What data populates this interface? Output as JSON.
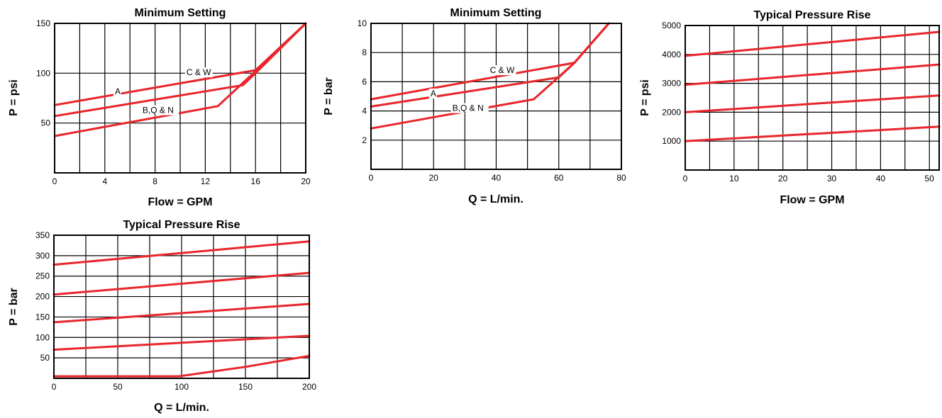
{
  "colors": {
    "line": "#e8262b",
    "grid": "#000000",
    "background": "#ffffff"
  },
  "chart_data": [
    {
      "type": "line",
      "title": "Minimum Setting",
      "xlabel": "Flow = GPM",
      "ylabel": "P = psi",
      "xlim": [
        0,
        20
      ],
      "ylim": [
        0,
        150
      ],
      "xticks": [
        0,
        4,
        8,
        12,
        16,
        20
      ],
      "yticks": [
        50,
        100,
        150
      ],
      "grid": true,
      "series": [
        {
          "name": "C & W",
          "points": [
            [
              0,
              68
            ],
            [
              16,
              103
            ],
            [
              20,
              150
            ]
          ]
        },
        {
          "name": "A",
          "points": [
            [
              0,
              57
            ],
            [
              15,
              88
            ],
            [
              16,
              100
            ],
            [
              20,
              150
            ]
          ]
        },
        {
          "name": "B,Q & N",
          "points": [
            [
              0,
              37
            ],
            [
              13,
              67
            ],
            [
              16,
              102
            ],
            [
              20,
              150
            ]
          ]
        }
      ],
      "annotations": [
        {
          "text": "C & W",
          "x": 10.5,
          "y": 98
        },
        {
          "text": "A",
          "x": 4.8,
          "y": 79
        },
        {
          "text": "B,Q & N",
          "x": 7.0,
          "y": 60
        }
      ]
    },
    {
      "type": "line",
      "title": "Minimum Setting",
      "xlabel": "Q = L/min.",
      "ylabel": "P = bar",
      "xlim": [
        0,
        80
      ],
      "ylim": [
        0,
        10
      ],
      "xticks": [
        0,
        20,
        40,
        60,
        80
      ],
      "yticks": [
        2,
        4,
        6,
        8,
        10
      ],
      "grid": true,
      "series": [
        {
          "name": "C & W",
          "points": [
            [
              0,
              4.8
            ],
            [
              65,
              7.3
            ],
            [
              76,
              10
            ]
          ]
        },
        {
          "name": "A",
          "points": [
            [
              0,
              4.3
            ],
            [
              60,
              6.3
            ],
            [
              65,
              7.3
            ],
            [
              76,
              10
            ]
          ]
        },
        {
          "name": "B,Q & N",
          "points": [
            [
              0,
              2.8
            ],
            [
              52,
              4.8
            ],
            [
              65,
              7.3
            ],
            [
              76,
              10
            ]
          ]
        }
      ],
      "annotations": [
        {
          "text": "C & W",
          "x": 38,
          "y": 6.6
        },
        {
          "text": "A",
          "x": 19,
          "y": 5.0
        },
        {
          "text": "B,Q & N",
          "x": 26,
          "y": 4.0
        }
      ]
    },
    {
      "type": "line",
      "title": "Typical Pressure Rise",
      "xlabel": "Flow = GPM",
      "ylabel": "P = psi",
      "xlim": [
        0,
        52
      ],
      "ylim": [
        0,
        5000
      ],
      "xticks": [
        0,
        10,
        20,
        30,
        40,
        50
      ],
      "yticks": [
        1000,
        2000,
        3000,
        4000,
        5000
      ],
      "grid": true,
      "series": [
        {
          "points": [
            [
              0,
              3950
            ],
            [
              52,
              4780
            ]
          ]
        },
        {
          "points": [
            [
              0,
              2950
            ],
            [
              52,
              3650
            ]
          ]
        },
        {
          "points": [
            [
              0,
              2000
            ],
            [
              52,
              2580
            ]
          ]
        },
        {
          "points": [
            [
              0,
              1000
            ],
            [
              52,
              1500
            ]
          ]
        }
      ],
      "annotations": []
    },
    {
      "type": "line",
      "title": "Typical Pressure Rise",
      "xlabel": "Q = L/min.",
      "ylabel": "P = bar",
      "xlim": [
        0,
        200
      ],
      "ylim": [
        0,
        350
      ],
      "xticks": [
        0,
        50,
        100,
        150,
        200
      ],
      "yticks": [
        50,
        100,
        150,
        200,
        250,
        300,
        350
      ],
      "grid": true,
      "series": [
        {
          "points": [
            [
              0,
              278
            ],
            [
              200,
              335
            ]
          ]
        },
        {
          "points": [
            [
              0,
              205
            ],
            [
              200,
              258
            ]
          ]
        },
        {
          "points": [
            [
              0,
              137
            ],
            [
              200,
              182
            ]
          ]
        },
        {
          "points": [
            [
              0,
              70
            ],
            [
              200,
              104
            ]
          ]
        },
        {
          "points": [
            [
              0,
              5
            ],
            [
              98,
              5
            ],
            [
              150,
              28
            ],
            [
              200,
              55
            ]
          ]
        }
      ],
      "annotations": []
    }
  ]
}
